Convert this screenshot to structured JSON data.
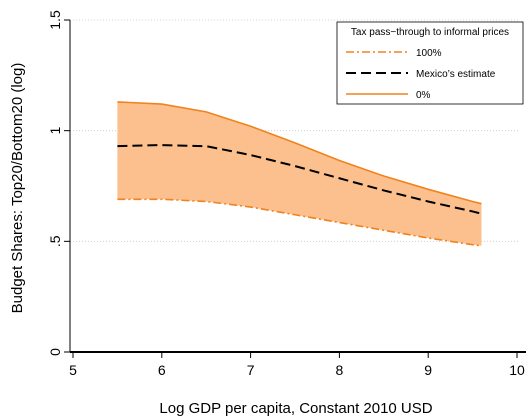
{
  "chart_data": {
    "type": "area",
    "xlabel": "Log GDP per capita, Constant 2010 USD",
    "ylabel": "Budget Shares: Top20/Bottom20 (log)",
    "xlim": [
      5,
      10
    ],
    "ylim": [
      0,
      1.5
    ],
    "x_ticks": [
      "5",
      "6",
      "7",
      "8",
      "9",
      "10"
    ],
    "y_ticks": [
      "0",
      ".5",
      "1",
      "1.5"
    ],
    "grid": "horizontal dotted",
    "legend": {
      "title": "Tax pass−through to informal prices",
      "placement": "top-right"
    },
    "x": [
      5.5,
      6.0,
      6.5,
      7.0,
      7.5,
      8.0,
      8.5,
      9.0,
      9.5,
      9.6
    ],
    "series": [
      {
        "name": "100%",
        "style": "dash-dot",
        "color": "#f0831e",
        "values": [
          0.69,
          0.69,
          0.68,
          0.655,
          0.62,
          0.585,
          0.55,
          0.515,
          0.485,
          0.48
        ]
      },
      {
        "name": "Mexico’s estimate",
        "style": "dashed",
        "color": "#000000",
        "values": [
          0.93,
          0.935,
          0.93,
          0.89,
          0.84,
          0.785,
          0.73,
          0.68,
          0.635,
          0.625
        ]
      },
      {
        "name": "0%",
        "style": "solid",
        "color": "#f0831e",
        "values": [
          1.13,
          1.12,
          1.085,
          1.02,
          0.945,
          0.865,
          0.795,
          0.735,
          0.68,
          0.67
        ]
      }
    ],
    "band_fill": "#fbc08d",
    "zero_line": 0
  }
}
